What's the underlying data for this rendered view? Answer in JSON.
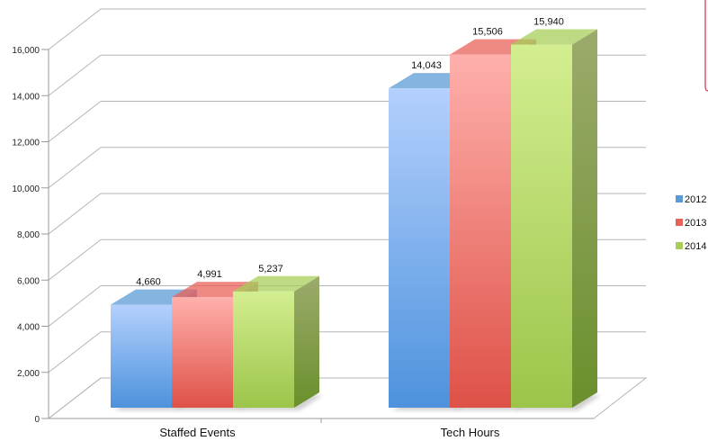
{
  "chart_data": {
    "type": "bar",
    "title": "",
    "xlabel": "",
    "ylabel": "",
    "categories": [
      "Staffed Events",
      "Tech Hours"
    ],
    "series": [
      {
        "name": "2012",
        "values": [
          4660,
          14043
        ],
        "color": "#5b9bd5",
        "labels": [
          "4,660",
          "14,043"
        ]
      },
      {
        "name": "2013",
        "values": [
          4991,
          15506
        ],
        "color": "#e8625a",
        "labels": [
          "4,991",
          "15,506"
        ]
      },
      {
        "name": "2014",
        "values": [
          5237,
          15940
        ],
        "color": "#a8cd5a",
        "labels": [
          "5,237",
          "15,940"
        ]
      }
    ],
    "ylim": [
      0,
      16000
    ],
    "yticks": [
      0,
      2000,
      4000,
      6000,
      8000,
      10000,
      12000,
      14000,
      16000
    ],
    "ytick_labels": [
      "0",
      "2,000",
      "4,000",
      "6,000",
      "8,000",
      "10,000",
      "12,000",
      "14,000",
      "16,000"
    ],
    "grid": true,
    "style": "3d-clustered",
    "legend": "right"
  }
}
